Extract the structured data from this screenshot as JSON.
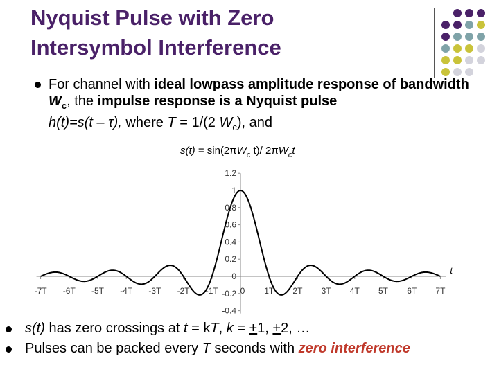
{
  "slide": {
    "title_line1": "Nyquist Pulse with Zero",
    "title_line2": "Intersymbol Interference",
    "palette": [
      "#4a2168",
      "#7fa3a8",
      "#c9c33a",
      "#d3d3dc"
    ]
  },
  "bullet1": {
    "t1": "For channel with ",
    "b1": "ideal lowpass amplitude response of bandwidth ",
    "b2": "W",
    "b2sub": "c",
    "t2": ", the ",
    "b3": "impulse response is a Nyquist pulse",
    "i1": "h(t)=s(t – ",
    "i1sym": "τ",
    "i1end": "),",
    "t3": " where ",
    "i2": "T",
    "t4": " = 1/(2 ",
    "i3": "W",
    "i3sub": "c",
    "t5": "), and"
  },
  "formula": {
    "a": "s(t)",
    "b": " = sin(2",
    "pi": "π",
    "c": "W",
    "csub": "c",
    "d": " t)/ 2",
    "pi2": "π",
    "e": "W",
    "esub": "c",
    "f": "t"
  },
  "chart_data": {
    "type": "line",
    "title": "",
    "xlabel": "t",
    "ylabel": "",
    "xlim": [
      -7,
      7
    ],
    "ylim": [
      -0.4,
      1.2
    ],
    "yticks": [
      "1.2",
      "1",
      "0.8",
      "0.6",
      "0.4",
      "0.2",
      "0",
      "-0.2",
      "-0.4"
    ],
    "xticks": [
      "-7T",
      "-6T",
      "-5T",
      "-4T",
      "-3T",
      "-2T",
      "-1T",
      "0",
      "1T",
      "2T",
      "3T",
      "4T",
      "5T",
      "6T",
      "7T"
    ],
    "function": "sin(pi*x)/(pi*x)",
    "x_units": "T",
    "series": [
      {
        "values_note": "",
        "color": "#000000"
      }
    ]
  },
  "bullet2": {
    "i1": "s(t)",
    "t1": " has zero crossings at ",
    "i2": "t",
    "t2": " = k",
    "i3": "T",
    "t3": ", ",
    "i4": "k",
    "t4": " = ",
    "u1": "+",
    "t5": "1, ",
    "u2": "+",
    "t6": "2, …"
  },
  "bullet3": {
    "t1": "Pulses can be packed every ",
    "i1": "T",
    "t2": " seconds with ",
    "zi": "zero interference"
  }
}
